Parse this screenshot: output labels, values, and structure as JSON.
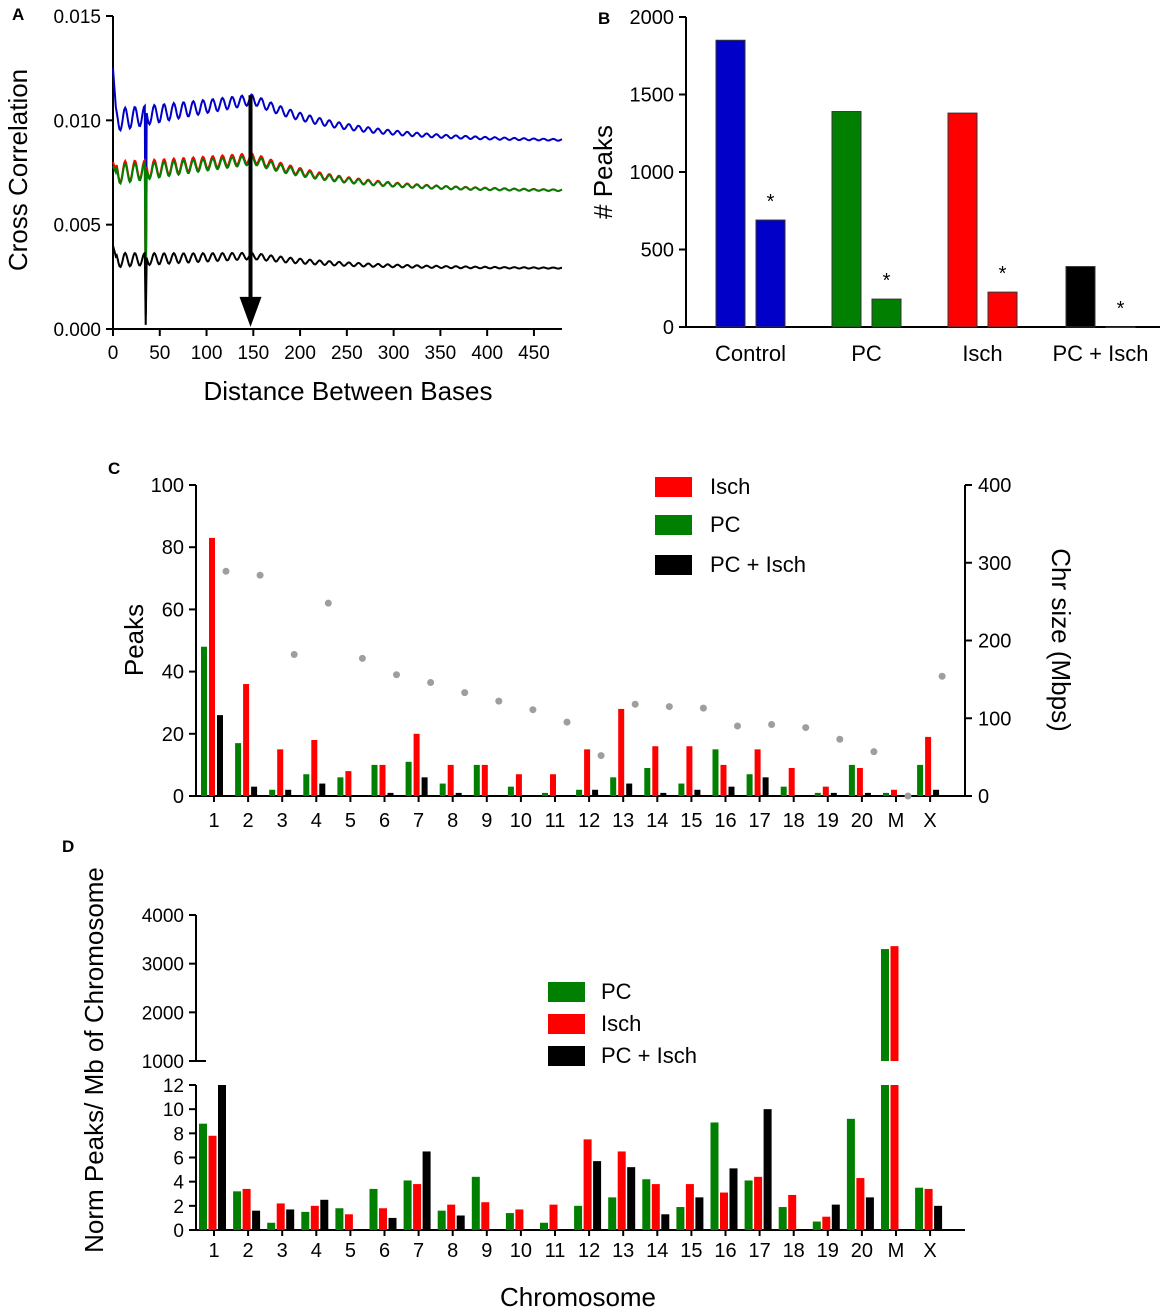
{
  "colors": {
    "blue": "#0000c8",
    "green": "#007f00",
    "red": "#ff0000",
    "black": "#000000",
    "gray": "#9e9e9e"
  },
  "chart_data": [
    {
      "panel": "A",
      "type": "line",
      "ylabel": "Cross  Correlation",
      "xlabel": "Distance Between Bases",
      "xlim": [
        0,
        480
      ],
      "ylim": [
        0,
        0.015
      ],
      "xticks": [
        "0",
        "50",
        "100",
        "150",
        "200",
        "250",
        "300",
        "350",
        "400",
        "450"
      ],
      "yticks": [
        "0.000",
        "0.005",
        "0.010",
        "0.015"
      ],
      "annotation": {
        "type": "arrow",
        "x": 147,
        "from_y": 0.0112,
        "to_y": 0.0001
      },
      "series": [
        {
          "name": "blue",
          "color": "blue",
          "start": 0.0125,
          "base_start": 0.01,
          "base_hump": 0.011,
          "base_end": 0.009,
          "dip_at": 35,
          "dip_to": 0.0007
        },
        {
          "name": "red",
          "color": "red",
          "start": 0.008,
          "base_start": 0.0075,
          "base_hump": 0.0082,
          "base_end": 0.0066,
          "dip_at": 35,
          "dip_to": 0.0008
        },
        {
          "name": "green",
          "color": "green",
          "start": 0.0078,
          "base_start": 0.0074,
          "base_hump": 0.0081,
          "base_end": 0.0066,
          "dip_at": 35,
          "dip_to": 0.0008
        },
        {
          "name": "black",
          "color": "black",
          "start": 0.004,
          "base_start": 0.0033,
          "base_hump": 0.0035,
          "base_end": 0.0029,
          "dip_at": 35,
          "dip_to": 0.0002
        }
      ]
    },
    {
      "panel": "B",
      "type": "bar",
      "ylabel": "# Peaks",
      "ylim": [
        0,
        2000
      ],
      "yticks": [
        "0",
        "500",
        "1000",
        "1500",
        "2000"
      ],
      "categories": [
        "Control",
        "PC",
        "Isch",
        "PC + Isch"
      ],
      "bars": [
        {
          "group": 0,
          "value": 1850,
          "color": "blue"
        },
        {
          "group": 0,
          "value": 690,
          "color": "blue",
          "star": "*"
        },
        {
          "group": 1,
          "value": 1390,
          "color": "green"
        },
        {
          "group": 1,
          "value": 180,
          "color": "green",
          "star": "*"
        },
        {
          "group": 2,
          "value": 1380,
          "color": "red"
        },
        {
          "group": 2,
          "value": 225,
          "color": "red",
          "star": "*"
        },
        {
          "group": 3,
          "value": 390,
          "color": "black"
        },
        {
          "group": 3,
          "value": 0,
          "color": "black",
          "star": "*"
        }
      ]
    },
    {
      "panel": "C",
      "type": "bar",
      "ylabel": "Peaks",
      "y2label": "Chr size (Mbps)",
      "ylim": [
        0,
        100
      ],
      "y2lim": [
        0,
        400
      ],
      "yticks": [
        "0",
        "20",
        "40",
        "60",
        "80",
        "100"
      ],
      "y2ticks": [
        "0",
        "100",
        "200",
        "300",
        "400"
      ],
      "categories": [
        "1",
        "2",
        "3",
        "4",
        "5",
        "6",
        "7",
        "8",
        "9",
        "10",
        "11",
        "12",
        "13",
        "14",
        "15",
        "16",
        "17",
        "18",
        "19",
        "20",
        "M",
        "X"
      ],
      "legend": [
        "Isch",
        "PC",
        "PC + Isch"
      ],
      "series": [
        {
          "name": "PC",
          "color": "green",
          "values": [
            48,
            17,
            2,
            7,
            6,
            10,
            11,
            4,
            10,
            3,
            1,
            2,
            6,
            9,
            4,
            15,
            7,
            3,
            1,
            10,
            1,
            10
          ]
        },
        {
          "name": "Isch",
          "color": "red",
          "values": [
            83,
            36,
            15,
            18,
            8,
            10,
            20,
            10,
            10,
            7,
            7,
            15,
            28,
            16,
            16,
            10,
            15,
            9,
            3,
            9,
            2,
            19
          ]
        },
        {
          "name": "PC + Isch",
          "color": "black",
          "values": [
            26,
            3,
            2,
            4,
            0,
            1,
            6,
            1,
            0,
            0,
            0,
            2,
            4,
            1,
            2,
            3,
            6,
            0,
            1,
            1,
            0,
            2
          ]
        },
        {
          "name": "Chr size",
          "color": "gray",
          "axis": "right",
          "values": [
            289,
            284,
            182,
            248,
            177,
            156,
            146,
            133,
            122,
            111,
            95,
            52,
            118,
            115,
            113,
            90,
            92,
            88,
            73,
            57,
            0,
            154
          ]
        }
      ]
    },
    {
      "panel": "D",
      "type": "bar",
      "ylabel": "Norm Peaks/ Mb of Chromosome",
      "xlabel": "Chromosome",
      "ylim_lower": [
        0,
        12
      ],
      "ylim_upper": [
        1000,
        4000
      ],
      "yticks_lower": [
        "0",
        "2",
        "4",
        "6",
        "8",
        "10",
        "12"
      ],
      "yticks_upper": [
        "1000",
        "2000",
        "3000",
        "4000"
      ],
      "categories": [
        "1",
        "2",
        "3",
        "4",
        "5",
        "6",
        "7",
        "8",
        "9",
        "10",
        "11",
        "12",
        "13",
        "14",
        "15",
        "16",
        "17",
        "18",
        "19",
        "20",
        "M",
        "X"
      ],
      "legend": [
        "PC",
        "Isch",
        "PC + Isch"
      ],
      "series": [
        {
          "name": "PC",
          "color": "green",
          "values": [
            8.8,
            3.2,
            0.6,
            1.5,
            1.8,
            3.4,
            4.1,
            1.6,
            4.4,
            1.4,
            0.6,
            2.0,
            2.7,
            4.2,
            1.9,
            8.9,
            4.1,
            1.9,
            0.7,
            9.2,
            3300,
            3.5
          ]
        },
        {
          "name": "Isch",
          "color": "red",
          "values": [
            7.8,
            3.4,
            2.2,
            2.0,
            1.3,
            1.8,
            3.8,
            2.1,
            2.3,
            1.7,
            2.1,
            7.5,
            6.5,
            3.8,
            3.8,
            3.1,
            4.4,
            2.9,
            1.1,
            4.3,
            3360,
            3.4
          ]
        },
        {
          "name": "PC + Isch",
          "color": "black",
          "values": [
            12,
            1.6,
            1.7,
            2.5,
            0,
            1.0,
            6.5,
            1.2,
            0,
            0,
            0,
            5.7,
            5.2,
            1.3,
            2.7,
            5.1,
            10,
            0,
            2.1,
            2.7,
            0,
            2.0
          ]
        }
      ]
    }
  ]
}
